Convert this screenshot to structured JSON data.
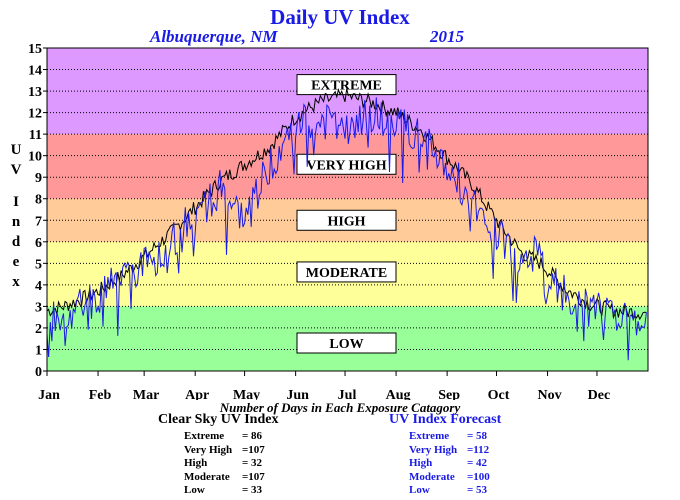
{
  "title": "Daily UV Index",
  "subtitle_location": "Albuquerque, NM",
  "subtitle_year": "2015",
  "colors": {
    "title": "#1a1ae6",
    "low": "#99ff99",
    "moderate": "#ffff99",
    "high": "#ffcc99",
    "very_high": "#ff9999",
    "extreme": "#dd99ff",
    "clear_sky_line": "#000000",
    "forecast_line": "#1a1ae6"
  },
  "chart_data": {
    "type": "line",
    "ylabel": "U V Index",
    "ylim": [
      0,
      15
    ],
    "yticks": [
      "0",
      "1",
      "2",
      "3",
      "4",
      "5",
      "6",
      "7",
      "8",
      "9",
      "10",
      "11",
      "12",
      "13",
      "14",
      "15"
    ],
    "xticks": [
      "Jan",
      "Feb",
      "Mar",
      "Apr",
      "May",
      "Jun",
      "Jul",
      "Aug",
      "Sep",
      "Oct",
      "Nov",
      "Dec"
    ],
    "grid": "dotted horizontal",
    "bands": [
      {
        "label": "LOW",
        "from": 0,
        "to": 3
      },
      {
        "label": "MODERATE",
        "from": 3,
        "to": 6
      },
      {
        "label": "HIGH",
        "from": 6,
        "to": 8
      },
      {
        "label": "VERY HIGH",
        "from": 8,
        "to": 11
      },
      {
        "label": "EXTREME",
        "from": 11,
        "to": 15
      }
    ],
    "series": [
      {
        "name": "Clear Sky UV Index",
        "x": [
          0,
          10,
          20,
          31,
          45,
          59,
          75,
          90,
          105,
          120,
          135,
          151,
          166,
          181,
          196,
          212,
          227,
          243,
          258,
          273,
          288,
          300,
          304,
          315,
          330,
          345,
          364
        ],
        "values": [
          2.8,
          3.0,
          3.3,
          3.7,
          4.4,
          5.3,
          6.4,
          7.6,
          8.8,
          9.6,
          10.4,
          11.8,
          12.5,
          12.8,
          12.5,
          12.0,
          11.2,
          9.9,
          8.7,
          7.0,
          5.5,
          5.0,
          4.7,
          3.8,
          3.1,
          2.8,
          2.7
        ]
      },
      {
        "name": "UV Index Forecast",
        "x": [
          0,
          10,
          20,
          31,
          45,
          59,
          75,
          90,
          105,
          120,
          135,
          151,
          166,
          181,
          196,
          212,
          227,
          243,
          258,
          273,
          288,
          300,
          304,
          315,
          330,
          345,
          364
        ],
        "values": [
          2.6,
          2.5,
          3.0,
          3.4,
          4.5,
          4.8,
          6.0,
          7.2,
          8.5,
          7.0,
          9.5,
          11.5,
          11.8,
          11.0,
          12.0,
          11.5,
          10.8,
          9.5,
          8.0,
          6.5,
          5.2,
          5.5,
          4.2,
          3.6,
          2.8,
          2.6,
          2.4
        ]
      }
    ]
  },
  "footnote": "Number of Days in Each Exposure Catagory",
  "clear_sky": {
    "header": "Clear Sky UV Index",
    "rows": [
      {
        "label": "Extreme",
        "value": "= 86"
      },
      {
        "label": "Very High",
        "value": "=107"
      },
      {
        "label": "High",
        "value": "= 32"
      },
      {
        "label": "Moderate",
        "value": "=107"
      },
      {
        "label": "Low",
        "value": "= 33"
      }
    ]
  },
  "forecast": {
    "header": "UV Index Forecast",
    "rows": [
      {
        "label": "Extreme",
        "value": "= 58"
      },
      {
        "label": "Very High",
        "value": "=112"
      },
      {
        "label": "High",
        "value": "= 42"
      },
      {
        "label": "Moderate",
        "value": "=100"
      },
      {
        "label": "Low",
        "value": "= 53"
      }
    ]
  }
}
